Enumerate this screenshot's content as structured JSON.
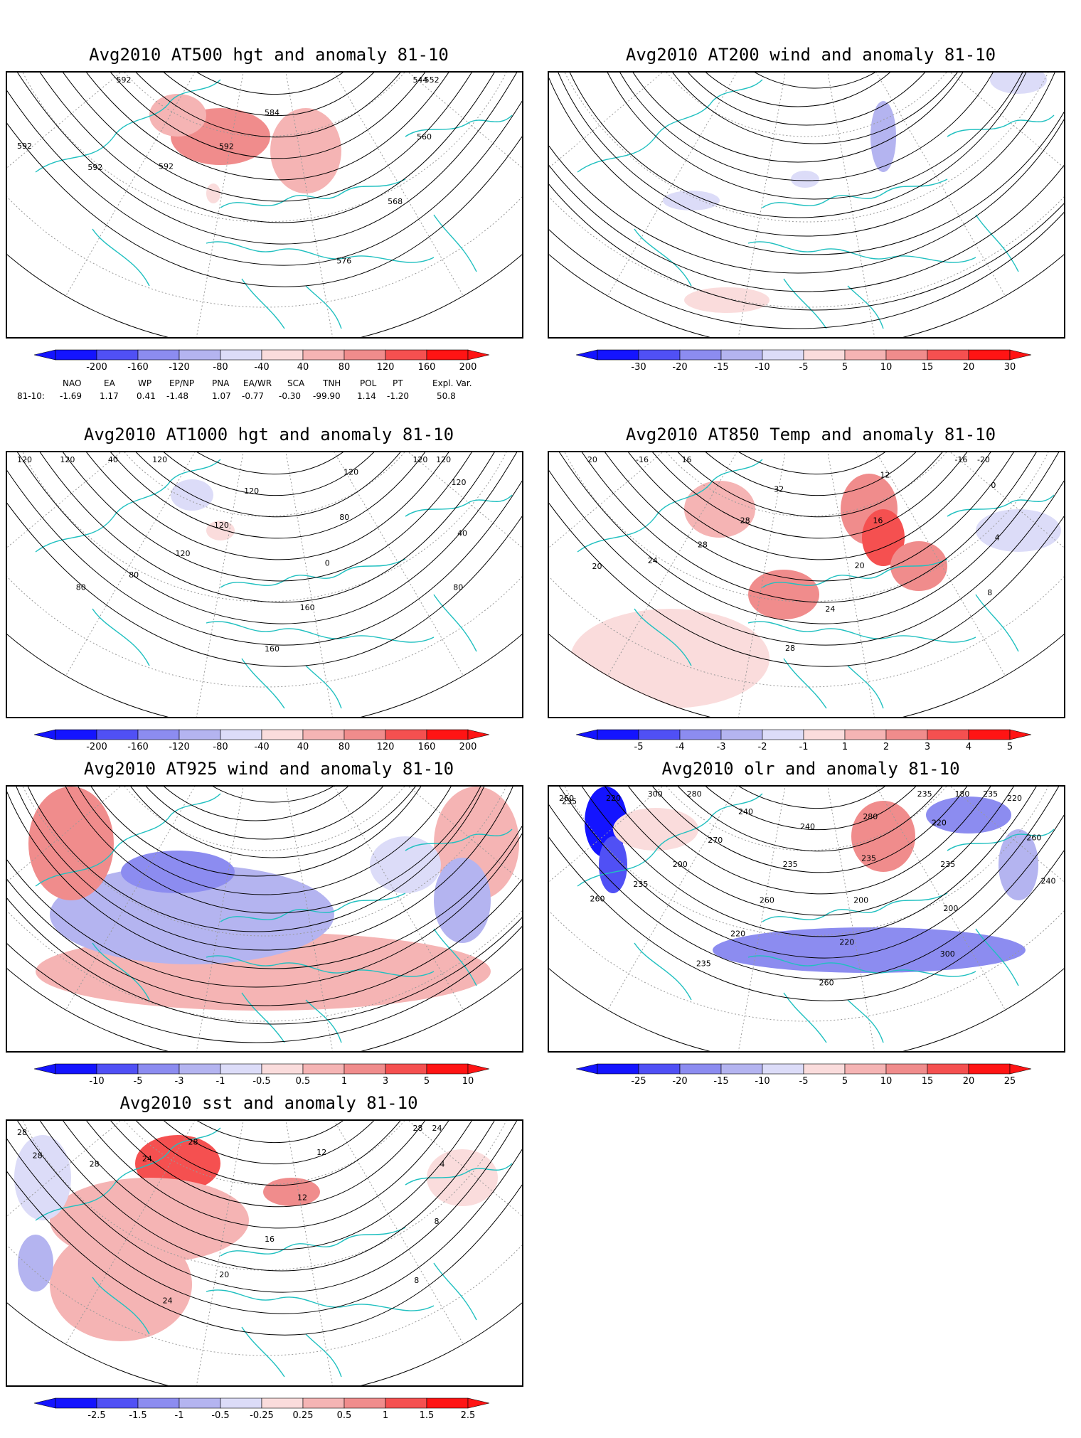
{
  "panels": [
    {
      "id": "p1",
      "title": "Avg2010 AT500 hgt and anomaly 81-10",
      "map_type": "height",
      "contour_labels": [
        "544",
        "552",
        "560",
        "568",
        "576",
        "584",
        "592",
        "592",
        "592",
        "592",
        "592"
      ],
      "colorbar": [
        "-200",
        "-160",
        "-120",
        "-80",
        "-40",
        "40",
        "80",
        "120",
        "160",
        "200"
      ]
    },
    {
      "id": "p2",
      "title": "Avg2010 AT200 wind and anomaly 81-10",
      "map_type": "streamlines",
      "contour_labels": [],
      "colorbar": [
        "-30",
        "-20",
        "-15",
        "-10",
        "-5",
        "5",
        "10",
        "15",
        "20",
        "30"
      ]
    },
    {
      "id": "p3",
      "title": "Avg2010 AT1000 hgt and anomaly 81-10",
      "map_type": "height",
      "contour_labels": [
        "120",
        "120",
        "120",
        "40",
        "80",
        "120",
        "80",
        "0",
        "160",
        "160",
        "120",
        "120",
        "120",
        "80",
        "80",
        "120",
        "40",
        "120",
        "120"
      ],
      "colorbar": [
        "-200",
        "-160",
        "-120",
        "-80",
        "-40",
        "40",
        "80",
        "120",
        "160",
        "200"
      ]
    },
    {
      "id": "p4",
      "title": "Avg2010 AT850 Temp and anomaly 81-10",
      "map_type": "temperature",
      "contour_labels": [
        "-16",
        "-20",
        "0",
        "4",
        "8",
        "12",
        "16",
        "20",
        "24",
        "28",
        "32",
        "28",
        "28",
        "24",
        "20",
        "16",
        "-16",
        "20"
      ],
      "colorbar": [
        "-5",
        "-4",
        "-3",
        "-2",
        "-1",
        "1",
        "2",
        "3",
        "4",
        "5"
      ]
    },
    {
      "id": "p5",
      "title": "Avg2010 AT925 wind and anomaly 81-10",
      "map_type": "streamlines",
      "contour_labels": [],
      "colorbar": [
        "-10",
        "-5",
        "-3",
        "-1",
        "-0.5",
        "0.5",
        "1",
        "3",
        "5",
        "10"
      ]
    },
    {
      "id": "p6",
      "title": "Avg2010 olr and anomaly 81-10",
      "map_type": "olr",
      "contour_labels": [
        "180",
        "235",
        "220",
        "260",
        "240",
        "235",
        "220",
        "235",
        "200",
        "300",
        "280",
        "235",
        "200",
        "220",
        "260",
        "240",
        "235",
        "260",
        "220",
        "235",
        "240",
        "270",
        "200",
        "235",
        "260",
        "280",
        "300",
        "220",
        "235",
        "260"
      ],
      "colorbar": [
        "-25",
        "-20",
        "-15",
        "-10",
        "-5",
        "5",
        "10",
        "15",
        "20",
        "25"
      ]
    },
    {
      "id": "p7",
      "title": "Avg2010 sst and anomaly 81-10",
      "map_type": "sst",
      "contour_labels": [
        "28",
        "24",
        "4",
        "8",
        "8",
        "12",
        "12",
        "16",
        "20",
        "24",
        "28",
        "24",
        "28",
        "28",
        "28"
      ],
      "colorbar": [
        "-2.5",
        "-1.5",
        "-1",
        "-0.5",
        "-0.25",
        "0.25",
        "0.5",
        "1",
        "1.5",
        "2.5"
      ]
    }
  ],
  "teleconnections": {
    "row_label": "81-10:",
    "headers": [
      "NAO",
      "EA",
      "WP",
      "EP/NP",
      "PNA",
      "EA/WR",
      "SCA",
      "TNH",
      "POL",
      "PT",
      "Expl. Var."
    ],
    "values": [
      "-1.69",
      "1.17",
      "0.41",
      "-1.48",
      "1.07",
      "-0.77",
      "-0.30",
      "-99.90",
      "1.14",
      "-1.20",
      "50.8"
    ]
  },
  "colors": {
    "blue_ramp": [
      "#1414ff",
      "#5050f5",
      "#8c8cf0",
      "#b4b4f0",
      "#dcdcf8"
    ],
    "red_ramp": [
      "#fadcdc",
      "#f5b4b4",
      "#f08c8c",
      "#f55050",
      "#ff1414"
    ],
    "coast": "#20c0c0",
    "contour": "#000000"
  }
}
